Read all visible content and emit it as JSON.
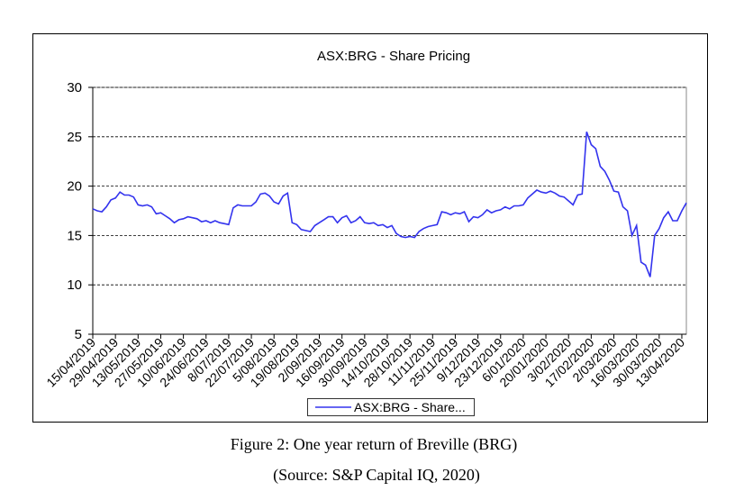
{
  "chart_data": {
    "type": "line",
    "title": "ASX:BRG - Share Pricing",
    "categories": [
      "15/04/2019",
      null,
      null,
      null,
      null,
      "29/04/2019",
      null,
      null,
      null,
      null,
      "13/05/2019",
      null,
      null,
      null,
      null,
      "27/05/2019",
      null,
      null,
      null,
      null,
      "10/06/2019",
      null,
      null,
      null,
      null,
      "24/06/2019",
      null,
      null,
      null,
      null,
      "8/07/2019",
      null,
      null,
      null,
      null,
      "22/07/2019",
      null,
      null,
      null,
      null,
      "5/08/2019",
      null,
      null,
      null,
      null,
      "19/08/2019",
      null,
      null,
      null,
      null,
      "2/09/2019",
      null,
      null,
      null,
      null,
      "16/09/2019",
      null,
      null,
      null,
      null,
      "30/09/2019",
      null,
      null,
      null,
      null,
      "14/10/2019",
      null,
      null,
      null,
      null,
      "28/10/2019",
      null,
      null,
      null,
      null,
      "11/11/2019",
      null,
      null,
      null,
      null,
      "25/11/2019",
      null,
      null,
      null,
      null,
      "9/12/2019",
      null,
      null,
      null,
      null,
      "23/12/2019",
      null,
      null,
      null,
      null,
      "6/01/2020",
      null,
      null,
      null,
      null,
      "20/01/2020",
      null,
      null,
      null,
      null,
      "3/02/2020",
      null,
      null,
      null,
      null,
      "17/02/2020",
      null,
      null,
      null,
      null,
      "2/03/2020",
      null,
      null,
      null,
      null,
      "16/03/2020",
      null,
      null,
      null,
      null,
      "30/03/2020",
      null,
      null,
      null,
      null,
      "13/04/2020",
      null
    ],
    "series": [
      {
        "name": "ASX:BRG - Share...",
        "color": "#3333ee",
        "values": [
          17.7,
          17.5,
          17.4,
          17.9,
          18.6,
          18.8,
          19.4,
          19.1,
          19.1,
          18.9,
          18.1,
          18.0,
          18.1,
          17.9,
          17.2,
          17.3,
          17.0,
          16.7,
          16.3,
          16.6,
          16.7,
          16.9,
          16.8,
          16.7,
          16.4,
          16.5,
          16.3,
          16.5,
          16.3,
          16.2,
          16.1,
          17.8,
          18.1,
          18.0,
          18.0,
          18.0,
          18.4,
          19.2,
          19.3,
          19.0,
          18.4,
          18.2,
          19.0,
          19.3,
          16.3,
          16.1,
          15.6,
          15.5,
          15.4,
          16.0,
          16.3,
          16.6,
          16.9,
          16.9,
          16.3,
          16.8,
          17.0,
          16.3,
          16.5,
          16.9,
          16.3,
          16.2,
          16.3,
          16.0,
          16.1,
          15.8,
          16.0,
          15.2,
          14.9,
          14.8,
          14.9,
          14.8,
          15.4,
          15.7,
          15.9,
          16.0,
          16.1,
          17.4,
          17.3,
          17.1,
          17.3,
          17.2,
          17.4,
          16.4,
          16.9,
          16.8,
          17.1,
          17.6,
          17.3,
          17.5,
          17.6,
          17.9,
          17.7,
          18.0,
          18.0,
          18.1,
          18.8,
          19.2,
          19.6,
          19.4,
          19.3,
          19.5,
          19.3,
          19.0,
          18.9,
          18.5,
          18.1,
          19.1,
          19.2,
          25.5,
          24.2,
          23.8,
          22.0,
          21.5,
          20.6,
          19.5,
          19.4,
          17.9,
          17.5,
          15.0,
          16.0,
          12.3,
          12.0,
          10.8,
          15.0,
          15.7,
          16.8,
          17.4,
          16.5,
          16.5,
          17.5,
          18.3
        ]
      }
    ],
    "ylim": [
      5,
      30
    ],
    "yticks": [
      5,
      10,
      15,
      20,
      25,
      30
    ],
    "grid": true
  },
  "caption": "Figure 2: One year return of Breville (BRG)",
  "source": "(Source: S&P Capital IQ, 2020)"
}
